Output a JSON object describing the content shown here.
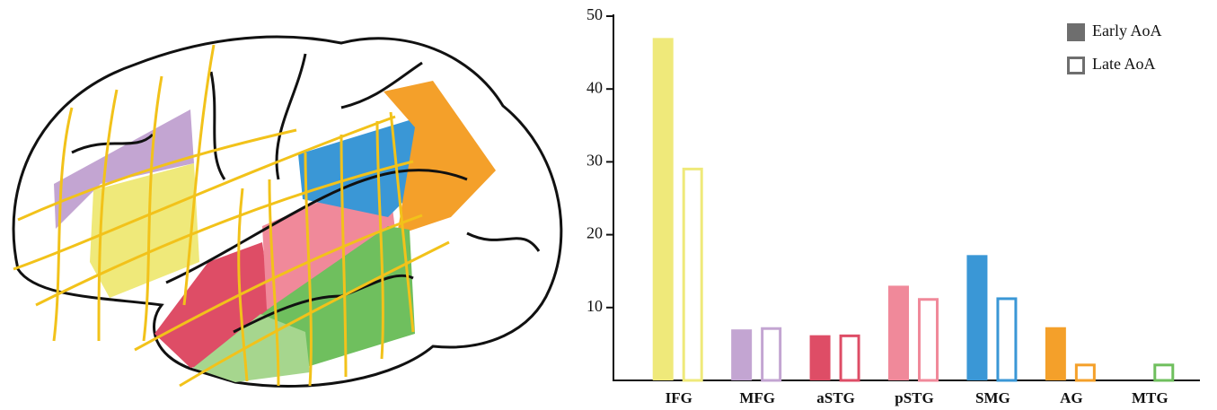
{
  "chart_data": {
    "type": "bar",
    "categories": [
      "IFG",
      "MFG",
      "aSTG",
      "pSTG",
      "SMG",
      "AG",
      "MTG"
    ],
    "colors": [
      "#efe97a",
      "#c3a5d2",
      "#de4d66",
      "#f0899a",
      "#3a97d6",
      "#f4a02a",
      "#6fbf5e"
    ],
    "series": [
      {
        "name": "Early AoA",
        "color": "#6e6e6e",
        "style": "filled",
        "values": [
          47,
          7,
          6.2,
          13,
          17.2,
          7.3,
          null
        ]
      },
      {
        "name": "Late AoA",
        "color": "#6e6e6e",
        "style": "outline",
        "values": [
          29.2,
          7.3,
          6.3,
          11.3,
          11.4,
          2.3,
          2.3
        ]
      }
    ],
    "ylim": [
      0,
      50
    ],
    "yticks": [
      10,
      20,
      30,
      40,
      50
    ],
    "legend": "top-right"
  }
}
